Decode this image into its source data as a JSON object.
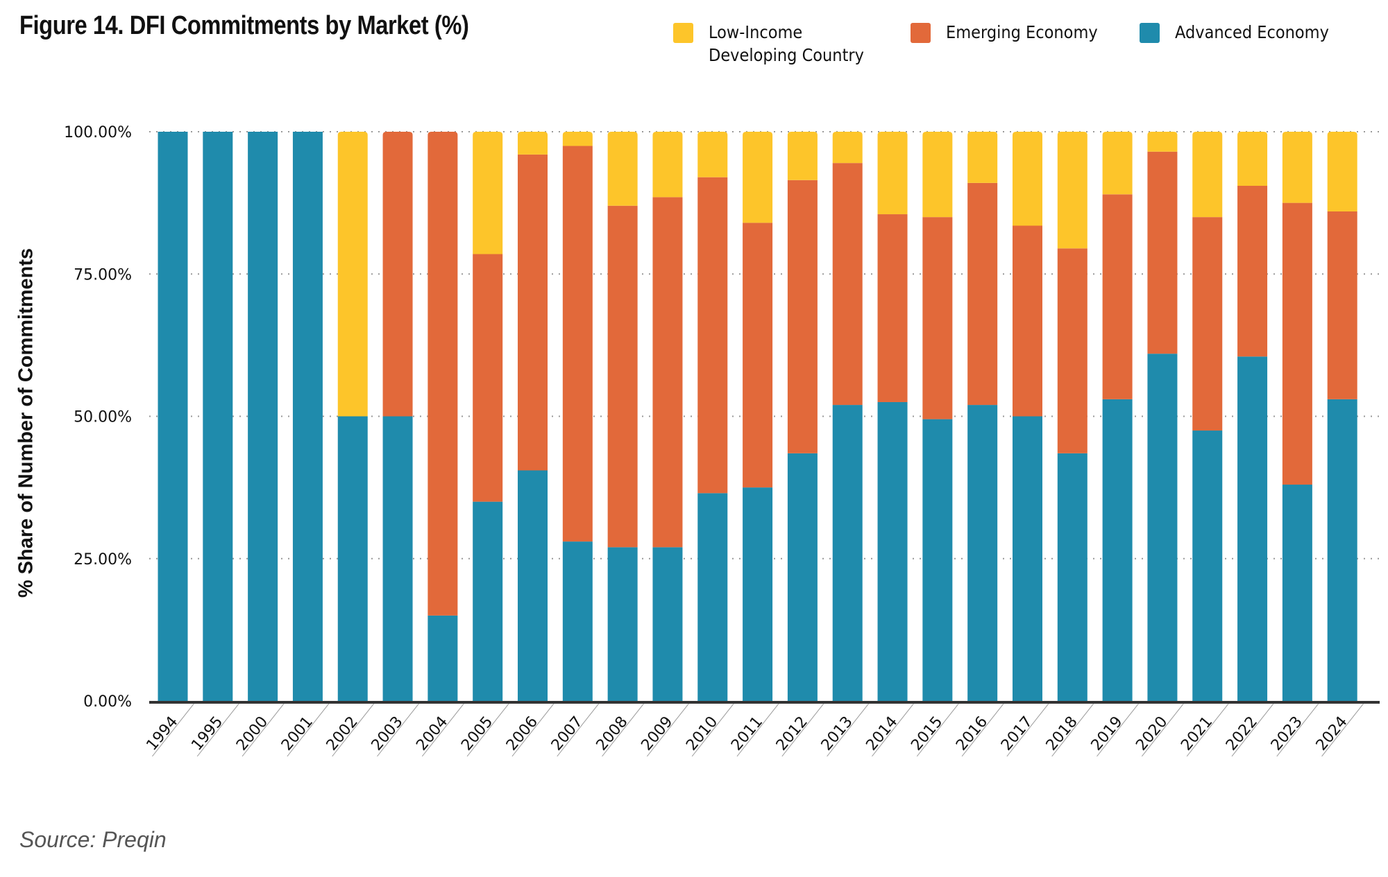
{
  "chart_data": {
    "type": "bar",
    "stacked": true,
    "title": "Figure 14. DFI Commitments by Market (%)",
    "xlabel": "",
    "ylabel": "% Share of Number of Commitments",
    "ylim": [
      0,
      100
    ],
    "yticks": [
      0,
      25,
      50,
      75,
      100
    ],
    "ytick_labels": [
      "0.00%",
      "25.00%",
      "50.00%",
      "75.00%",
      "100.00%"
    ],
    "grid": "horizontal-dotted",
    "legend_position": "top-right",
    "categories": [
      "1994",
      "1995",
      "2000",
      "2001",
      "2002",
      "2003",
      "2004",
      "2005",
      "2006",
      "2007",
      "2008",
      "2009",
      "2010",
      "2011",
      "2012",
      "2013",
      "2014",
      "2015",
      "2016",
      "2017",
      "2018",
      "2019",
      "2020",
      "2021",
      "2022",
      "2023",
      "2024"
    ],
    "series": [
      {
        "name": "Advanced Economy",
        "color": "#1f8bac",
        "values": [
          100,
          100,
          100,
          100,
          50,
          50,
          15,
          35,
          40.5,
          28,
          27,
          27,
          36.5,
          37.5,
          43.5,
          52,
          52.5,
          49.5,
          52,
          50,
          43.5,
          53,
          61,
          47.5,
          60.5,
          38,
          53
        ]
      },
      {
        "name": "Emerging Economy",
        "color": "#e2693a",
        "values": [
          0,
          0,
          0,
          0,
          0,
          50,
          85,
          43.5,
          55.5,
          69.5,
          60,
          61.5,
          55.5,
          46.5,
          48,
          42.5,
          33,
          35.5,
          39,
          33.5,
          36,
          36,
          35.5,
          37.5,
          30,
          49.5,
          33
        ]
      },
      {
        "name": "Low-Income Developing Country",
        "color": "#fdc52a",
        "values": [
          0,
          0,
          0,
          0,
          50,
          0,
          0,
          21.5,
          4,
          2.5,
          13,
          11.5,
          8,
          16,
          8.5,
          5.5,
          14.5,
          15,
          9,
          16.5,
          20.5,
          11,
          3.5,
          15,
          9.5,
          12.5,
          14
        ]
      }
    ]
  },
  "legend": [
    {
      "label": "Low-Income\nDeveloping Country",
      "color": "#fdc52a"
    },
    {
      "label": "Emerging Economy",
      "color": "#e2693a"
    },
    {
      "label": "Advanced Economy",
      "color": "#1f8bac"
    }
  ],
  "source": "Source: Preqin"
}
